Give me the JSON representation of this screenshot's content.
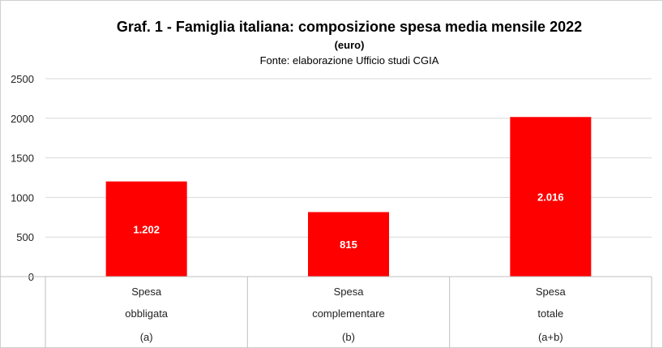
{
  "chart_data": {
    "type": "bar",
    "title": "Graf. 1 - Famiglia italiana: composizione spesa media mensile 2022",
    "subtitle": "(euro)",
    "source": "Fonte: elaborazione Ufficio studi CGIA",
    "categories": [
      [
        "Spesa",
        "obbligata",
        "(a)"
      ],
      [
        "Spesa",
        "complementare",
        "(b)"
      ],
      [
        "Spesa",
        "totale",
        "(a+b)"
      ]
    ],
    "values": [
      1202,
      815,
      2016
    ],
    "data_labels": [
      "1.202",
      "815",
      "2.016"
    ],
    "yticks": [
      "0",
      "500",
      "1000",
      "1500",
      "2000",
      "2500"
    ],
    "ylim": [
      0,
      2500
    ],
    "grid": true,
    "bar_color": "#ff0000",
    "label_color": "#ffffff"
  }
}
